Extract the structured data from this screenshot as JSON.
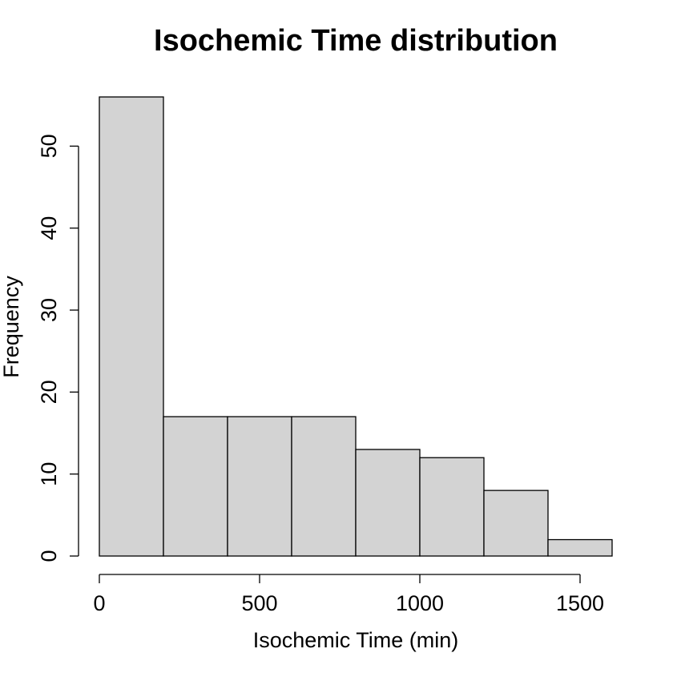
{
  "chart_data": {
    "type": "bar",
    "title": "Isochemic Time distribution",
    "xlabel": "Isochemic Time (min)",
    "ylabel": "Frequency",
    "bin_edges": [
      0,
      200,
      400,
      600,
      800,
      1000,
      1200,
      1400,
      1600
    ],
    "values": [
      56,
      17,
      17,
      17,
      13,
      12,
      8,
      2
    ],
    "xlim": [
      0,
      1600
    ],
    "ylim": [
      0,
      56
    ],
    "x_ticks": [
      0,
      500,
      1000,
      1500
    ],
    "y_ticks": [
      0,
      10,
      20,
      30,
      40,
      50
    ],
    "bar_color": "#d3d3d3",
    "edge_color": "#000000",
    "grid": false
  }
}
